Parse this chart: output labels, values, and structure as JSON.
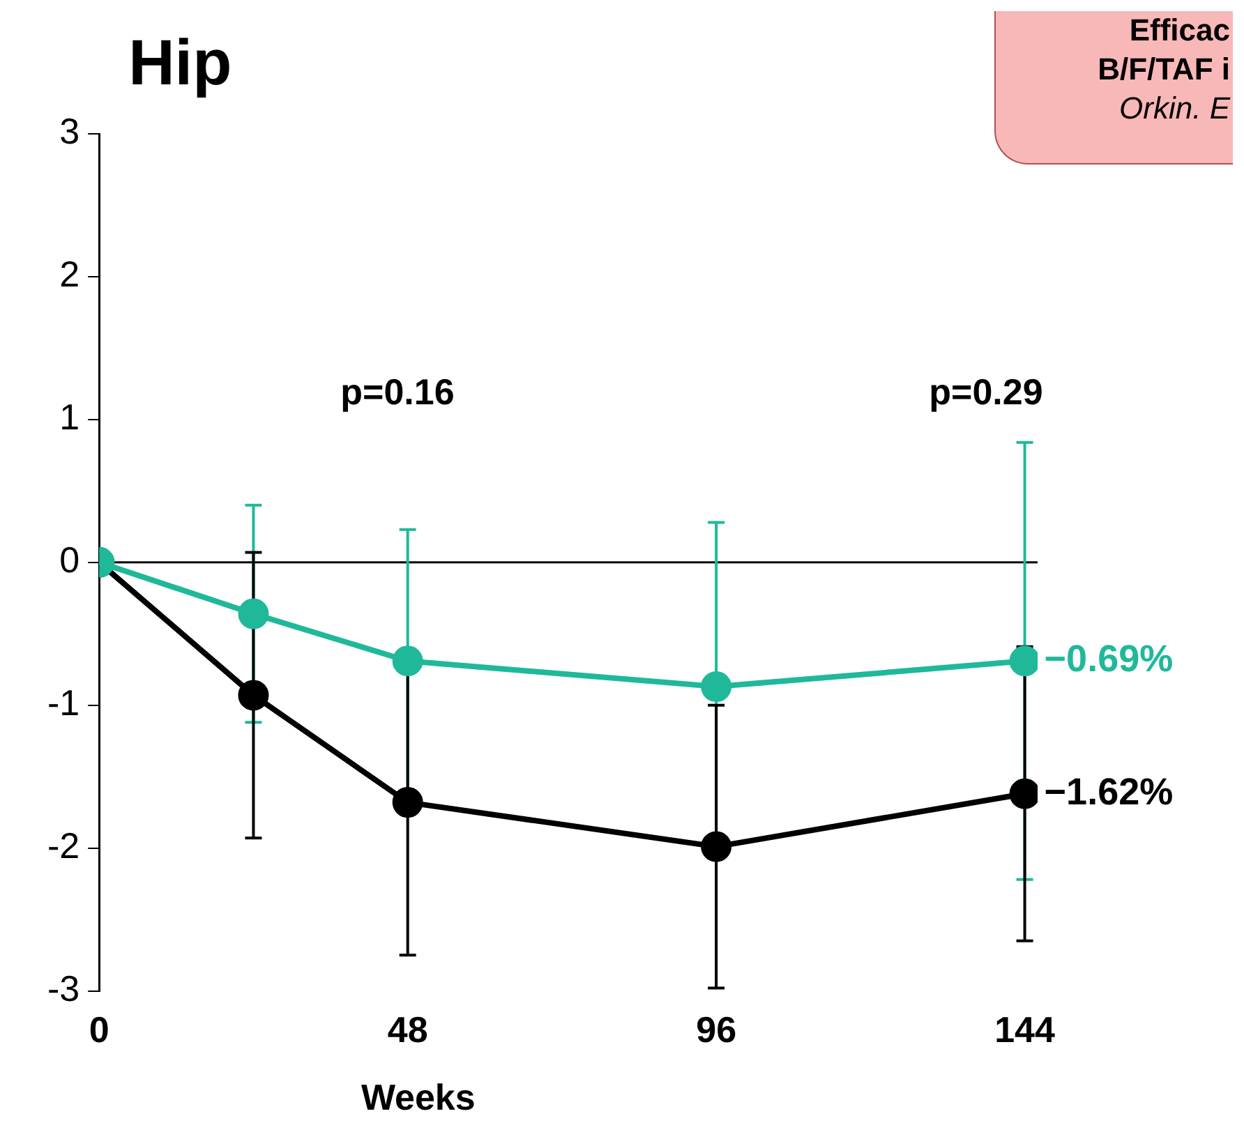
{
  "chart_data": {
    "type": "line",
    "title": "Hip",
    "xlabel": "Weeks",
    "x": [
      0,
      24,
      48,
      96,
      144
    ],
    "series": [
      {
        "color": "#1fb99a",
        "values": [
          0,
          -0.36,
          -0.69,
          -0.87,
          -0.69
        ],
        "errors": [
          null,
          0.76,
          0.92,
          1.15,
          1.53
        ],
        "value_labels": [
          null,
          null,
          null,
          null,
          "−0.69%"
        ]
      },
      {
        "color": "#000000",
        "values": [
          0,
          -0.93,
          -1.68,
          -1.99,
          -1.62
        ],
        "errors": [
          null,
          1.0,
          1.07,
          0.99,
          1.03
        ],
        "value_labels": [
          null,
          null,
          null,
          null,
          "−1.62%"
        ]
      }
    ],
    "xlim": [
      0,
      146
    ],
    "xticks": [
      0,
      48,
      96,
      144
    ],
    "ylim": [
      -3,
      3
    ],
    "yticks": [
      -3,
      -2,
      -1,
      0,
      1,
      2,
      3
    ],
    "ref_lines": [
      {
        "axis": "y",
        "value": 0,
        "color": "#000000"
      }
    ],
    "annotations": [
      "p=0.16",
      "p=0.29",
      "Efficac",
      "B/F/TAF i",
      "Orkin. E"
    ],
    "grid": false,
    "legend": false,
    "marker": "circle",
    "line_style": "solid"
  }
}
